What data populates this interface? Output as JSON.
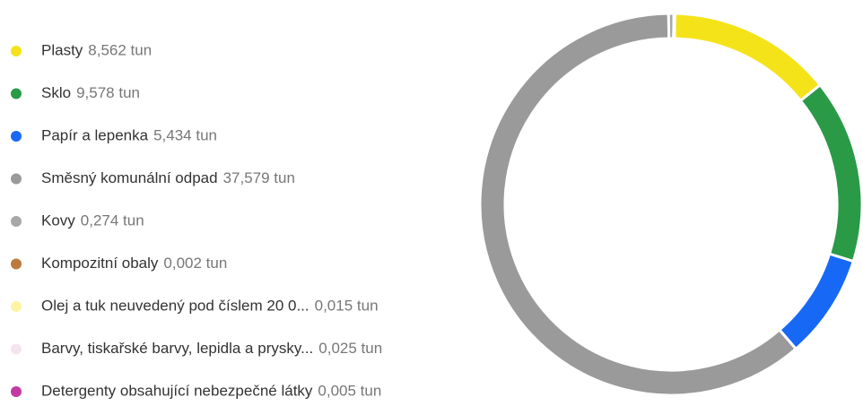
{
  "chart_data": {
    "type": "donut",
    "categories": [
      "Plasty",
      "Sklo",
      "Papír a lepenka",
      "Směsný komunální odpad",
      "Kovy",
      "Kompozitní obaly",
      "Olej a tuk neuvedený pod číslem 20 0...",
      "Barvy, tiskařské barvy, lepidla a prysky...",
      "Detergenty obsahující nebezpečné látky"
    ],
    "values": [
      8.562,
      9.578,
      5.434,
      37.579,
      0.274,
      0.002,
      0.015,
      0.025,
      0.005
    ],
    "value_labels": [
      "8,562 tun",
      "9,578 tun",
      "5,434 tun",
      "37,579 tun",
      "0,274 tun",
      "0,002 tun",
      "0,015 tun",
      "0,025 tun",
      "0,005 tun"
    ],
    "colors": [
      "#f5e31a",
      "#2a9a47",
      "#1769f5",
      "#9a9a9a",
      "#a8a8a8",
      "#bd7a3b",
      "#fdf4a3",
      "#f5e4ee",
      "#c33aa0"
    ],
    "legend": "left"
  }
}
